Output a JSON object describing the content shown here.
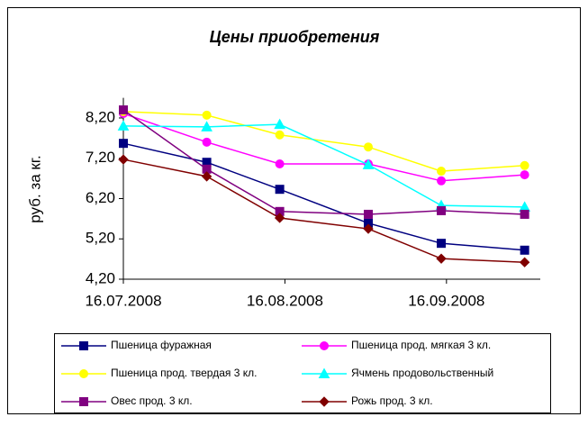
{
  "chart_data": {
    "type": "line",
    "title": "Цены приобретения",
    "y_label": "руб. за кг.",
    "x": [
      "16.07.2008",
      "01.08.2008",
      "15.08.2008",
      "01.09.2008",
      "15.09.2008",
      "01.10.2008"
    ],
    "xlim": [
      "16.07.2008",
      "04.10.2008"
    ],
    "xticks": [
      "16.07.2008",
      "16.08.2008",
      "16.09.2008"
    ],
    "ylim": [
      4.2,
      8.7
    ],
    "yticks": [
      {
        "value": 4.2,
        "label": "4,20"
      },
      {
        "value": 5.2,
        "label": "5,20"
      },
      {
        "value": 6.2,
        "label": "6,20"
      },
      {
        "value": 7.2,
        "label": "7,20"
      },
      {
        "value": 8.2,
        "label": "8,20"
      }
    ],
    "grid": false,
    "legend": "bottom",
    "series": [
      {
        "name": "Пшеница фуражная",
        "color": "#000080",
        "marker": "square",
        "values": [
          7.57,
          7.1,
          6.43,
          5.59,
          5.09,
          4.92
        ]
      },
      {
        "name": "Пшеница прод. мягкая 3 кл.",
        "color": "#ff00ff",
        "marker": "circle",
        "values": [
          8.31,
          7.6,
          7.06,
          7.06,
          6.64,
          6.79
        ]
      },
      {
        "name": "Пшеница прод. твердая 3 кл.",
        "color": "#ffff00",
        "marker": "circle",
        "values": [
          8.36,
          8.27,
          7.78,
          7.48,
          6.88,
          7.02
        ]
      },
      {
        "name": "Ячмень продовольственный",
        "color": "#00ffff",
        "marker": "triangle",
        "values": [
          8.0,
          7.98,
          8.04,
          7.04,
          6.03,
          5.99
        ]
      },
      {
        "name": "Овес прод. 3 кл.",
        "color": "#800080",
        "marker": "square",
        "values": [
          8.4,
          6.93,
          5.88,
          5.81,
          5.9,
          5.81
        ]
      },
      {
        "name": "Рожь прод. 3 кл.",
        "color": "#800000",
        "marker": "diamond",
        "values": [
          7.17,
          6.75,
          5.72,
          5.45,
          4.71,
          4.62
        ]
      }
    ]
  }
}
